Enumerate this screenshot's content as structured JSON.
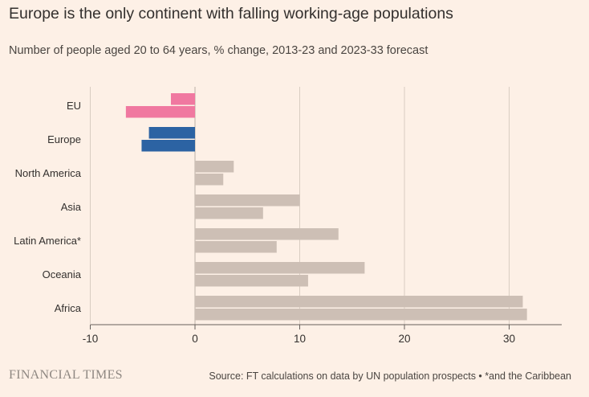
{
  "title": "Europe is the only continent with falling working-age populations",
  "subtitle": "Number of people aged 20 to 64 years, % change, 2013-23 and 2023-33 forecast",
  "brand": "FINANCIAL TIMES",
  "source": "Source: FT calculations on data by UN population prospects • *and the Caribbean",
  "colors": {
    "background": "#fdf0e6",
    "eu": "#f078a0",
    "europe": "#2c63a3",
    "other": "#cdbfb5",
    "grid": "#d9cdc2",
    "axis": "#66605c"
  },
  "chart_data": {
    "type": "bar",
    "orientation": "horizontal",
    "categories": [
      "EU",
      "Europe",
      "North America",
      "Asia",
      "Latin America*",
      "Oceania",
      "Africa"
    ],
    "series": [
      {
        "values": [
          -2.3,
          -4.4,
          3.7,
          10.0,
          13.7,
          16.2,
          31.3
        ]
      },
      {
        "values": [
          -6.6,
          -5.1,
          2.7,
          6.5,
          7.8,
          10.8,
          31.7
        ]
      }
    ],
    "xlim": [
      -10,
      35
    ],
    "xticks": [
      -10,
      0,
      10,
      20,
      30
    ],
    "xtick_labels": [
      "-10",
      "0",
      "10",
      "20",
      "30"
    ],
    "grid": true
  }
}
